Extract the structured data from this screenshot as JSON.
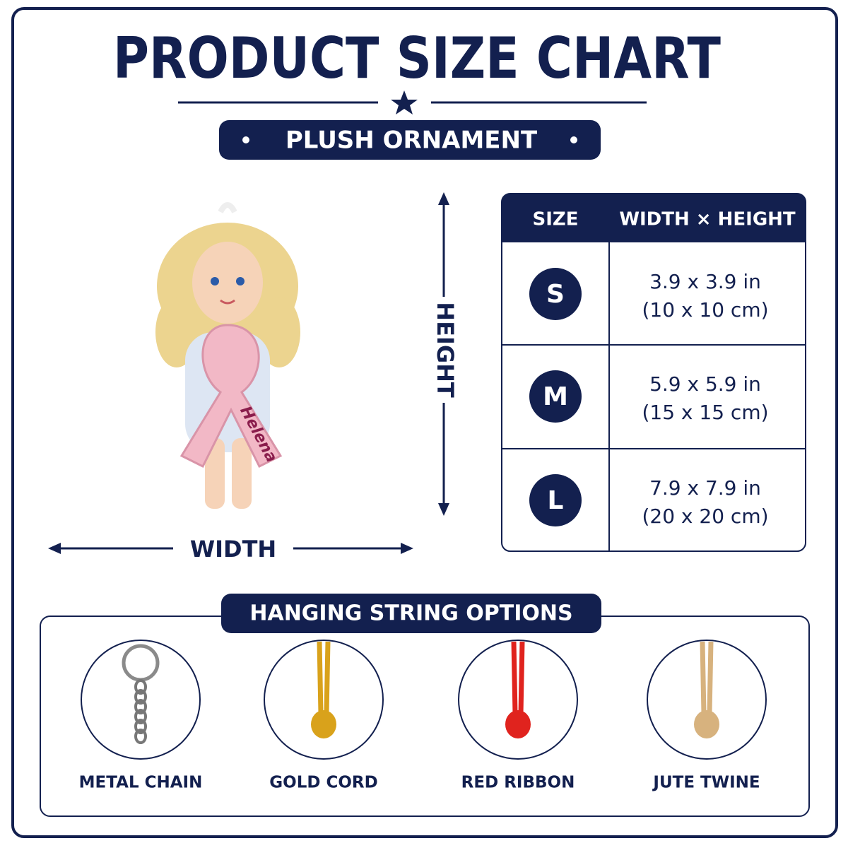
{
  "header": {
    "title": "PRODUCT SIZE CHART",
    "subtitle": "PLUSH ORNAMENT"
  },
  "product": {
    "name_label": "Helena",
    "width_label": "WIDTH",
    "height_label": "HEIGHT"
  },
  "table": {
    "headers": [
      "SIZE",
      "WIDTH × HEIGHT"
    ],
    "rows": [
      [
        "S",
        "3.9 x 3.9 in",
        "(10 x 10 cm)"
      ],
      [
        "M",
        "5.9 x 5.9 in",
        "(15 x 15 cm)"
      ],
      [
        "L",
        "7.9 x 7.9 in",
        "(20 x 20 cm)"
      ]
    ]
  },
  "options": {
    "title": "HANGING STRING OPTIONS",
    "items": [
      "METAL CHAIN",
      "GOLD CORD",
      "RED RIBBON",
      "JUTE TWINE"
    ]
  }
}
